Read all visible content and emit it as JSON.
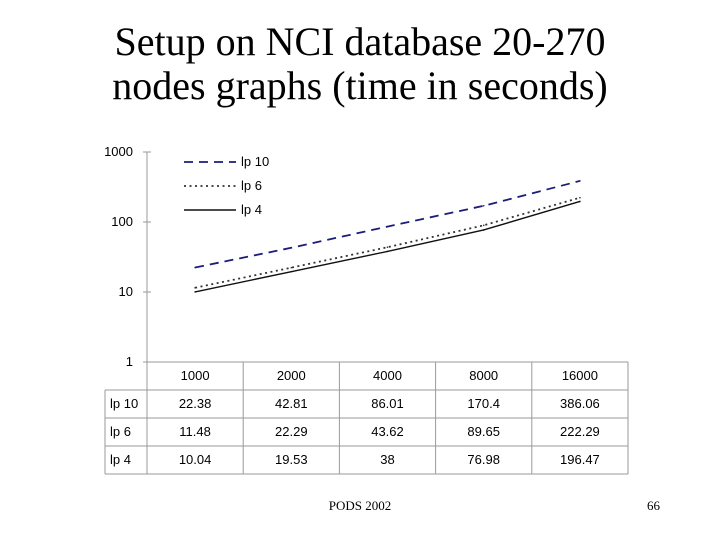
{
  "slide": {
    "title_line1": "Setup on NCI database 20-270",
    "title_line2": "nodes graphs (time in seconds)",
    "footer_center": "PODS 2002",
    "page_number": "66"
  },
  "chart_data": {
    "type": "line",
    "y_scale": "log",
    "ylim": [
      1,
      1000
    ],
    "y_ticks": [
      "1000",
      "100",
      "10",
      "1"
    ],
    "categories": [
      "1000",
      "2000",
      "4000",
      "8000",
      "16000"
    ],
    "series": [
      {
        "name": "lp 10",
        "values": [
          22.38,
          42.81,
          86.01,
          170.4,
          386.06
        ],
        "style": "dashed",
        "color": "#1c1c7a"
      },
      {
        "name": "lp 6",
        "values": [
          11.48,
          22.29,
          43.62,
          89.65,
          222.29
        ],
        "style": "dotted",
        "color": "#333333"
      },
      {
        "name": "lp 4",
        "values": [
          10.04,
          19.53,
          38,
          76.98,
          196.47
        ],
        "style": "solid",
        "color": "#111111"
      }
    ],
    "table_rows": [
      {
        "label": "lp 10",
        "cells": [
          "22.38",
          "42.81",
          "86.01",
          "170.4",
          "386.06"
        ]
      },
      {
        "label": "lp 6",
        "cells": [
          "11.48",
          "22.29",
          "43.62",
          "89.65",
          "222.29"
        ]
      },
      {
        "label": "lp 4",
        "cells": [
          "10.04",
          "19.53",
          "38",
          "76.98",
          "196.47"
        ]
      }
    ],
    "legend_position": "top-left",
    "grid": false
  }
}
